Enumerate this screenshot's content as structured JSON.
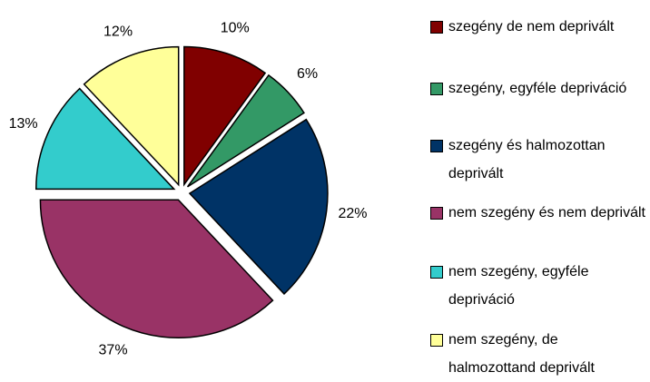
{
  "chart_data": {
    "type": "pie",
    "categories": [
      "szegény de nem deprivált",
      "szegény, egyféle depriváció",
      "szegény és halmozottan deprivált",
      "nem szegény és nem deprivált",
      "nem szegény, egyféle depriváció",
      "nem szegény, de halmozottand deprivált"
    ],
    "values": [
      10,
      6,
      22,
      37,
      13,
      12
    ],
    "value_labels": [
      "10%",
      "6%",
      "22%",
      "37%",
      "13%",
      "12%"
    ],
    "colors": [
      "#800000",
      "#339966",
      "#003366",
      "#993366",
      "#33cccc",
      "#ffff99"
    ],
    "legend": "right"
  }
}
